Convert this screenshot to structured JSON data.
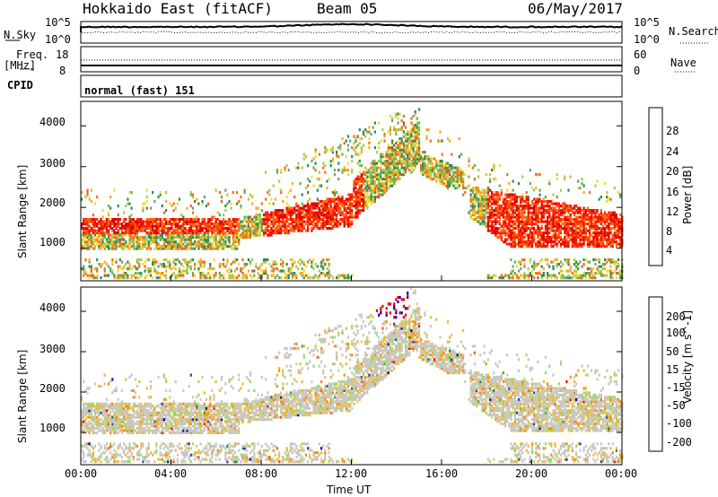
{
  "header": {
    "station": "Hokkaido East (fitACF)",
    "beam": "Beam 05",
    "date": "06/May/2017"
  },
  "noise_panel": {
    "left_label": "N.Sky",
    "left_ticks": [
      "10^5",
      "10^0"
    ],
    "right_ticks": [
      "10^5",
      "10^0"
    ],
    "right_label": "N.Search"
  },
  "freq_panel": {
    "left_label_1": "Freq.",
    "left_label_2": "[MHz]",
    "left_ticks": [
      "18",
      "8"
    ],
    "right_ticks": [
      "60",
      "0"
    ],
    "right_label": "Nave"
  },
  "cpid_panel": {
    "label": "CPID",
    "mode": "normal (fast) 151"
  },
  "x_axis": {
    "label": "Time UT",
    "ticks": [
      "00:00",
      "04:00",
      "08:00",
      "12:00",
      "16:00",
      "20:00",
      "00:00"
    ]
  },
  "chart_data": [
    {
      "type": "heatmap",
      "panel": "power",
      "xlabel": "Time UT",
      "ylabel": "Slant Range [km]",
      "y_ticks": [
        "1000",
        "2000",
        "3000",
        "4000"
      ],
      "colorbar_label": "Power [dB]",
      "colorbar_ticks": [
        "28",
        "24",
        "20",
        "16",
        "12",
        "8",
        "4"
      ],
      "colorscale": [
        "#0000ff",
        "#2255aa",
        "#2e8b57",
        "#66aa66",
        "#aacc44",
        "#eedd33",
        "#ffaa22",
        "#ff6611",
        "#ff2200",
        "#dd0000"
      ],
      "ylim": [
        200,
        4600
      ],
      "xlim": [
        "00:00",
        "24:00"
      ]
    },
    {
      "type": "heatmap",
      "panel": "velocity",
      "xlabel": "Time UT",
      "ylabel": "Slant Range [km]",
      "y_ticks": [
        "1000",
        "2000",
        "3000",
        "4000"
      ],
      "colorbar_label": "Velocity [m s^-1]",
      "colorbar_ticks": [
        "200",
        "100",
        "50",
        "15",
        "-15",
        "-50",
        "-100",
        "-200"
      ],
      "colorscale": [
        "#ee0000",
        "#ff5500",
        "#ff8800",
        "#eebb22",
        "#c8c8c0",
        "#99dd55",
        "#44aa44",
        "#227755",
        "#2244aa",
        "#0000cc"
      ],
      "ylim": [
        200,
        4600
      ],
      "xlim": [
        "00:00",
        "24:00"
      ]
    }
  ]
}
